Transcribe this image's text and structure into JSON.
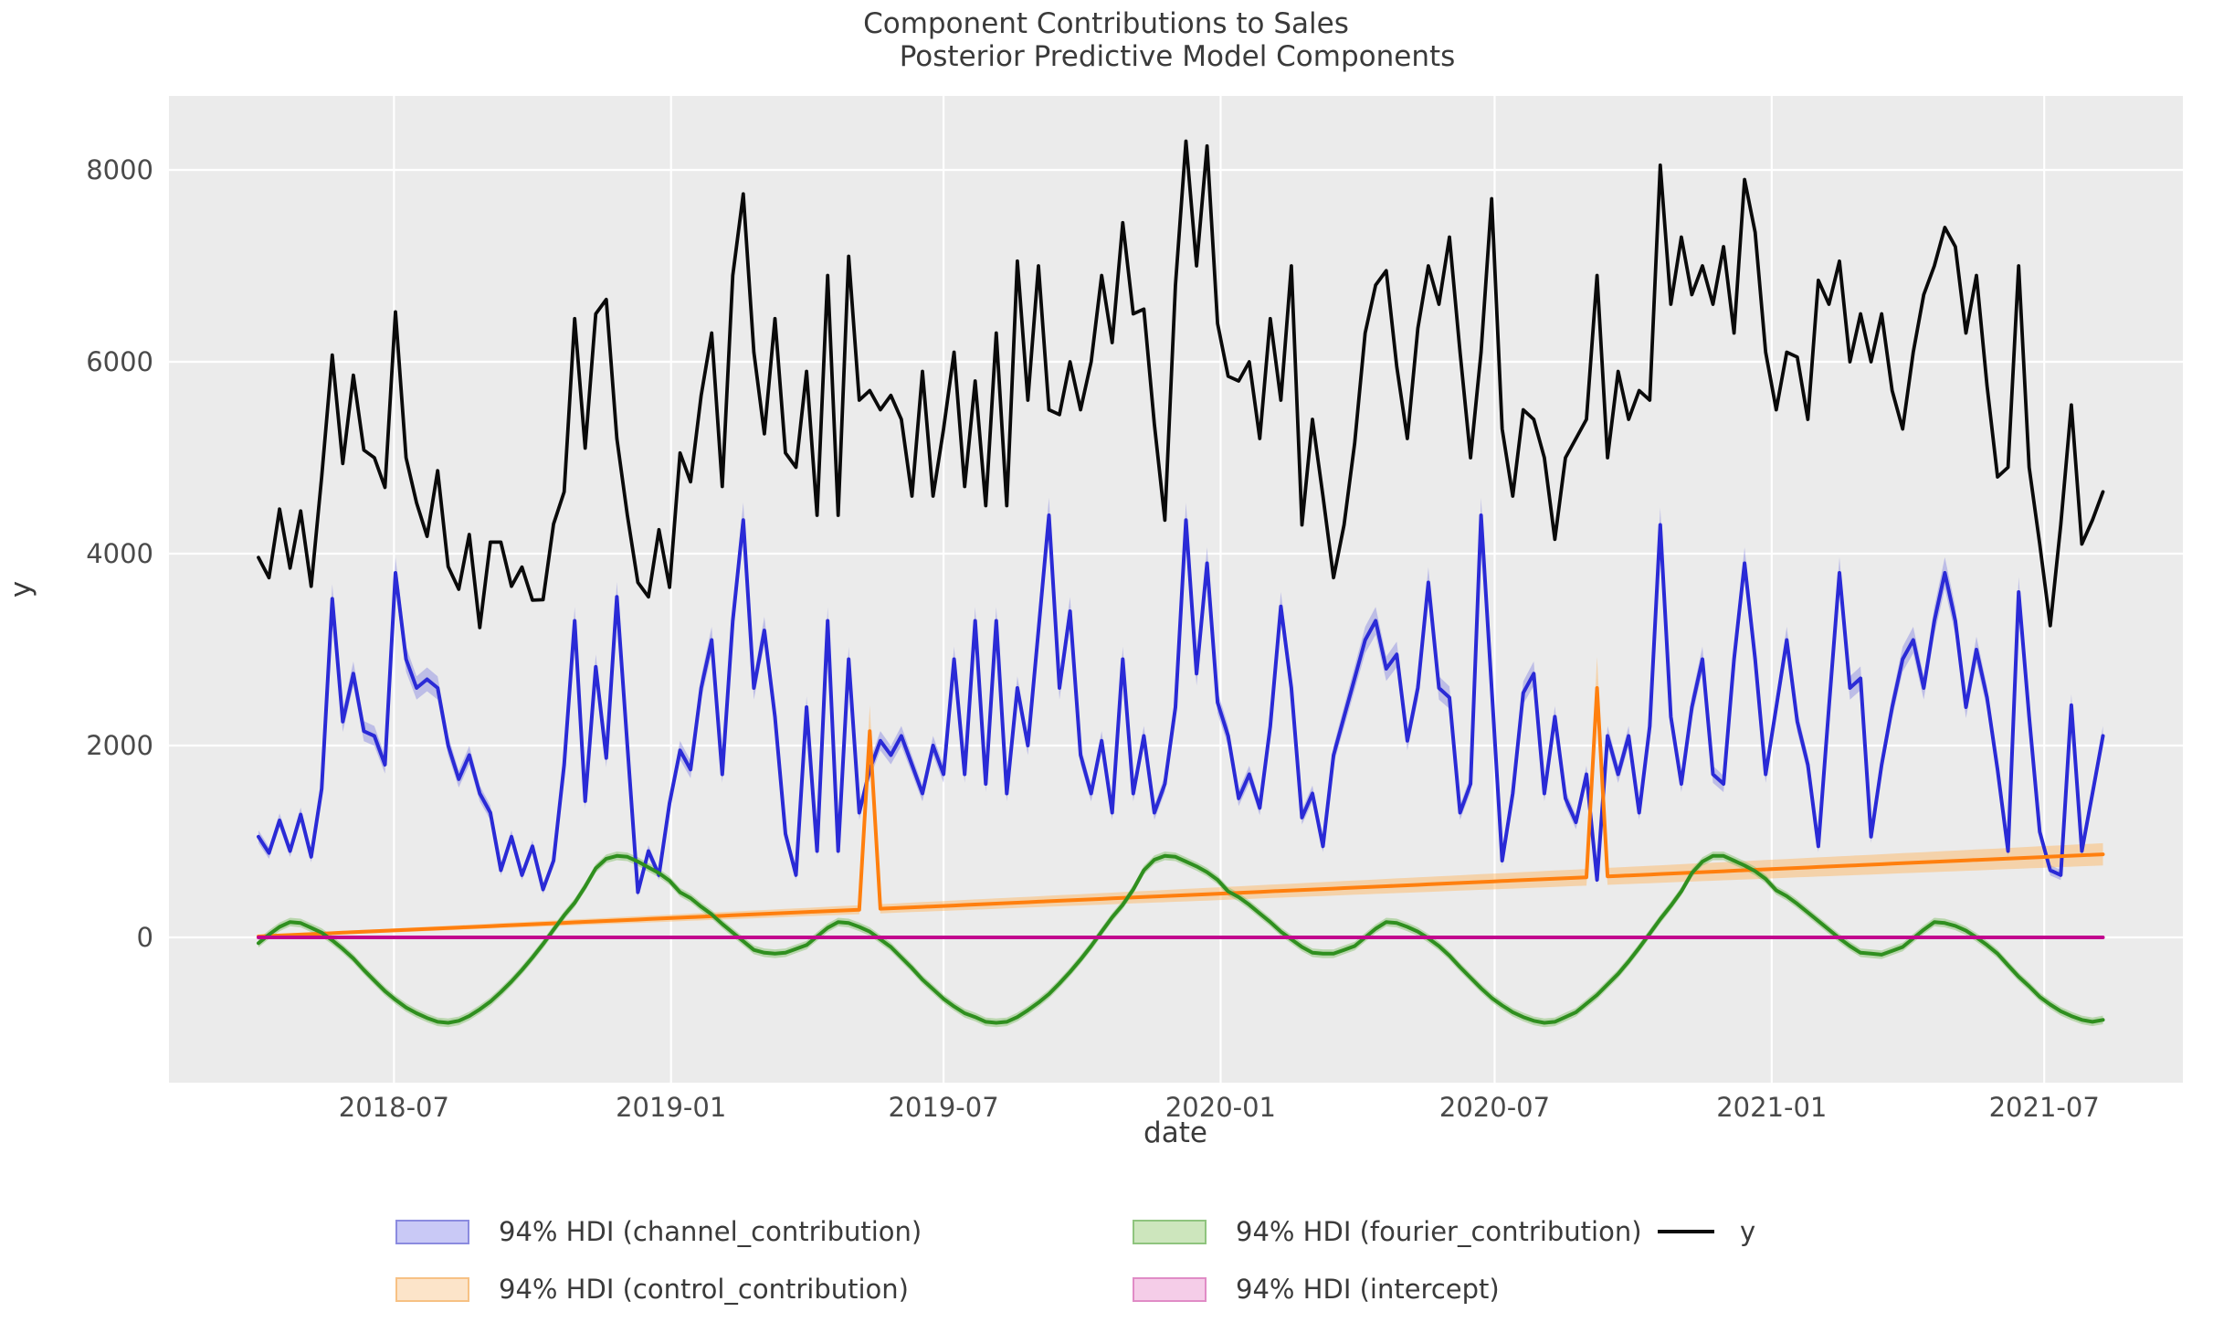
{
  "figure": {
    "suptitle": "Component Contributions to Sales",
    "title": "Posterior Predictive Model Components",
    "xlabel": "date",
    "ylabel": "y",
    "background_color": "#ffffff",
    "axes_background_color": "#ebebeb",
    "gridline_color": "#ffffff"
  },
  "legend": {
    "items": [
      {
        "label": "94% HDI (channel_contribution)",
        "swatch_fill": "#c9c9f6",
        "swatch_stroke": "#8b8bdf",
        "type": "patch",
        "row": 0,
        "col": 0
      },
      {
        "label": "94% HDI (control_contribution)",
        "swatch_fill": "#fce4c9",
        "swatch_stroke": "#f7c184",
        "type": "patch",
        "row": 1,
        "col": 0
      },
      {
        "label": "94% HDI (fourier_contribution)",
        "swatch_fill": "#cde6bd",
        "swatch_stroke": "#8fc47e",
        "type": "patch",
        "row": 0,
        "col": 1
      },
      {
        "label": "94% HDI (intercept)",
        "swatch_fill": "#f5cde8",
        "swatch_stroke": "#e08cc6",
        "type": "patch",
        "row": 1,
        "col": 1
      },
      {
        "label": "y",
        "swatch_stroke": "#0a0a0a",
        "type": "line",
        "row": 0,
        "col": 2
      }
    ]
  },
  "chart_data": {
    "type": "line",
    "title": "Component Contributions to Sales / Posterior Predictive Model Components",
    "xlabel": "date",
    "ylabel": "y",
    "grid": true,
    "legend_position": "below",
    "ylim": [
      -1500,
      8780
    ],
    "y_ticks": [
      0,
      2000,
      4000,
      6000,
      8000
    ],
    "x_ticks": [
      {
        "label": "2018-07",
        "date": "2018-07-01"
      },
      {
        "label": "2019-01",
        "date": "2019-01-01"
      },
      {
        "label": "2019-07",
        "date": "2019-07-01"
      },
      {
        "label": "2020-01",
        "date": "2020-01-01"
      },
      {
        "label": "2020-07",
        "date": "2020-07-01"
      },
      {
        "label": "2021-01",
        "date": "2021-01-01"
      },
      {
        "label": "2021-07",
        "date": "2021-07-01"
      }
    ],
    "dates": [
      "2018-04-02",
      "2018-04-09",
      "2018-04-16",
      "2018-04-23",
      "2018-04-30",
      "2018-05-07",
      "2018-05-14",
      "2018-05-21",
      "2018-05-28",
      "2018-06-04",
      "2018-06-11",
      "2018-06-18",
      "2018-06-25",
      "2018-07-02",
      "2018-07-09",
      "2018-07-16",
      "2018-07-23",
      "2018-07-30",
      "2018-08-06",
      "2018-08-13",
      "2018-08-20",
      "2018-08-27",
      "2018-09-03",
      "2018-09-10",
      "2018-09-17",
      "2018-09-24",
      "2018-10-01",
      "2018-10-08",
      "2018-10-15",
      "2018-10-22",
      "2018-10-29",
      "2018-11-05",
      "2018-11-12",
      "2018-11-19",
      "2018-11-26",
      "2018-12-03",
      "2018-12-10",
      "2018-12-17",
      "2018-12-24",
      "2018-12-31",
      "2019-01-07",
      "2019-01-14",
      "2019-01-21",
      "2019-01-28",
      "2019-02-04",
      "2019-02-11",
      "2019-02-18",
      "2019-02-25",
      "2019-03-04",
      "2019-03-11",
      "2019-03-18",
      "2019-03-25",
      "2019-04-01",
      "2019-04-08",
      "2019-04-15",
      "2019-04-22",
      "2019-04-29",
      "2019-05-06",
      "2019-05-13",
      "2019-05-20",
      "2019-05-27",
      "2019-06-03",
      "2019-06-10",
      "2019-06-17",
      "2019-06-24",
      "2019-07-01",
      "2019-07-08",
      "2019-07-15",
      "2019-07-22",
      "2019-07-29",
      "2019-08-05",
      "2019-08-12",
      "2019-08-19",
      "2019-08-26",
      "2019-09-02",
      "2019-09-09",
      "2019-09-16",
      "2019-09-23",
      "2019-09-30",
      "2019-10-07",
      "2019-10-14",
      "2019-10-21",
      "2019-10-28",
      "2019-11-04",
      "2019-11-11",
      "2019-11-18",
      "2019-11-25",
      "2019-12-02",
      "2019-12-09",
      "2019-12-16",
      "2019-12-23",
      "2019-12-30",
      "2020-01-06",
      "2020-01-13",
      "2020-01-20",
      "2020-01-27",
      "2020-02-03",
      "2020-02-10",
      "2020-02-17",
      "2020-02-24",
      "2020-03-02",
      "2020-03-09",
      "2020-03-16",
      "2020-03-23",
      "2020-03-30",
      "2020-04-06",
      "2020-04-13",
      "2020-04-20",
      "2020-04-27",
      "2020-05-04",
      "2020-05-11",
      "2020-05-18",
      "2020-05-25",
      "2020-06-01",
      "2020-06-08",
      "2020-06-15",
      "2020-06-22",
      "2020-06-29",
      "2020-07-06",
      "2020-07-13",
      "2020-07-20",
      "2020-07-27",
      "2020-08-03",
      "2020-08-10",
      "2020-08-17",
      "2020-08-24",
      "2020-08-31",
      "2020-09-07",
      "2020-09-14",
      "2020-09-21",
      "2020-09-28",
      "2020-10-05",
      "2020-10-12",
      "2020-10-19",
      "2020-10-26",
      "2020-11-02",
      "2020-11-09",
      "2020-11-16",
      "2020-11-23",
      "2020-11-30",
      "2020-12-07",
      "2020-12-14",
      "2020-12-21",
      "2020-12-28",
      "2021-01-04",
      "2021-01-11",
      "2021-01-18",
      "2021-01-25",
      "2021-02-01",
      "2021-02-08",
      "2021-02-15",
      "2021-02-22",
      "2021-03-01",
      "2021-03-08",
      "2021-03-15",
      "2021-03-22",
      "2021-03-29",
      "2021-04-05",
      "2021-04-12",
      "2021-04-19",
      "2021-04-26",
      "2021-05-03",
      "2021-05-10",
      "2021-05-17",
      "2021-05-24",
      "2021-05-31",
      "2021-06-07",
      "2021-06-14",
      "2021-06-21",
      "2021-06-28",
      "2021-07-05",
      "2021-07-12",
      "2021-07-19",
      "2021-07-26",
      "2021-08-02",
      "2021-08-09"
    ],
    "series": [
      {
        "name": "y",
        "color": "#0a0a0a",
        "kind": "line",
        "values": [
          3960,
          3750,
          4465,
          3850,
          4445,
          3660,
          4800,
          6070,
          4940,
          5860,
          5080,
          5000,
          4690,
          6520,
          5000,
          4530,
          4180,
          4865,
          3865,
          3630,
          4200,
          3230,
          4120,
          4120,
          3660,
          3860,
          3515,
          3520,
          4310,
          4645,
          6450,
          5100,
          6500,
          6650,
          5200,
          4400,
          3700,
          3550,
          4250,
          3650,
          5050,
          4750,
          5650,
          6300,
          4700,
          6900,
          7750,
          6100,
          5250,
          6450,
          5050,
          4900,
          5900,
          4400,
          6900,
          4400,
          7100,
          5600,
          5700,
          5500,
          5650,
          5400,
          4600,
          5900,
          4600,
          5300,
          6100,
          4700,
          5800,
          4500,
          6300,
          4500,
          7050,
          5600,
          7000,
          5500,
          5450,
          6000,
          5500,
          6000,
          6900,
          6200,
          7450,
          6500,
          6550,
          5350,
          4350,
          6800,
          8300,
          7000,
          8250,
          6400,
          5850,
          5800,
          6000,
          5200,
          6450,
          5600,
          7000,
          4300,
          5400,
          4600,
          3750,
          4300,
          5150,
          6300,
          6800,
          6950,
          5950,
          5200,
          6350,
          7000,
          6600,
          7300,
          6100,
          5000,
          6100,
          7700,
          5300,
          4600,
          5500,
          5400,
          5000,
          4150,
          5000,
          5200,
          5400,
          6900,
          5000,
          5900,
          5400,
          5700,
          5600,
          8050,
          6600,
          7300,
          6700,
          7000,
          6600,
          7200,
          6300,
          7900,
          7350,
          6100,
          5500,
          6100,
          6050,
          5400,
          6850,
          6600,
          7050,
          6000,
          6500,
          6000,
          6500,
          5700,
          5300,
          6100,
          6700,
          7000,
          7400,
          7200,
          6300,
          6900,
          5750,
          4800,
          4900,
          7000,
          4900,
          4100,
          3250,
          4300,
          5550,
          4100,
          4350,
          4645
        ]
      },
      {
        "name": "channel_contribution",
        "color": "#2a2ad6",
        "band_color": "#8484e0",
        "kind": "line_hdi",
        "hdi_label": "94% HDI (channel_contribution)",
        "hdi_halfwidth_frac": 0.035,
        "hdi_halfwidth_base": 30,
        "values": [
          1050,
          880,
          1220,
          900,
          1280,
          840,
          1550,
          3530,
          2250,
          2750,
          2150,
          2100,
          1800,
          3800,
          2900,
          2600,
          2690,
          2600,
          2000,
          1650,
          1900,
          1500,
          1300,
          700,
          1050,
          650,
          950,
          500,
          800,
          1800,
          3300,
          1420,
          2820,
          1870,
          3550,
          2000,
          470,
          900,
          650,
          1400,
          1950,
          1750,
          2600,
          3100,
          1700,
          3300,
          4350,
          2600,
          3200,
          2300,
          1080,
          650,
          2400,
          900,
          3300,
          900,
          2900,
          1300,
          1750,
          2050,
          1900,
          2100,
          1800,
          1500,
          2000,
          1700,
          2900,
          1700,
          3300,
          1600,
          3300,
          1500,
          2600,
          2000,
          3200,
          4400,
          2600,
          3400,
          1900,
          1500,
          2050,
          1300,
          2900,
          1500,
          2100,
          1300,
          1600,
          2400,
          4350,
          2750,
          3900,
          2450,
          2100,
          1450,
          1700,
          1350,
          2200,
          3450,
          2600,
          1250,
          1500,
          950,
          1900,
          2300,
          2700,
          3100,
          3300,
          2800,
          2950,
          2050,
          2600,
          3700,
          2600,
          2500,
          1300,
          1600,
          4400,
          2600,
          800,
          1500,
          2550,
          2750,
          1500,
          2300,
          1450,
          1200,
          1700,
          600,
          2100,
          1700,
          2100,
          1300,
          2200,
          4300,
          2300,
          1600,
          2400,
          2900,
          1700,
          1600,
          2900,
          3900,
          2900,
          1700,
          2400,
          3100,
          2250,
          1800,
          950,
          2400,
          3800,
          2600,
          2700,
          1050,
          1800,
          2400,
          2900,
          3100,
          2600,
          3300,
          3800,
          3300,
          2400,
          3000,
          2500,
          1750,
          900,
          3600,
          2300,
          1100,
          700,
          650,
          2420,
          900,
          1500,
          2100
        ]
      },
      {
        "name": "control_contribution",
        "color": "#ff7f0e",
        "band_color": "#ffb35c",
        "kind": "line_hdi",
        "hdi_label": "94% HDI (control_contribution)",
        "hdi_halfwidth_frac": 0.12,
        "hdi_halfwidth_base": 12,
        "trend_start": 10,
        "trend_end": 866,
        "spikes": [
          {
            "date": "2019-05-13",
            "week": 58,
            "value": 2150
          },
          {
            "date": "2020-09-07",
            "week": 127,
            "value": 2600
          }
        ]
      },
      {
        "name": "fourier_contribution",
        "color": "#2f8f1f",
        "band_color": "#7dbc62",
        "kind": "line_hdi",
        "hdi_label": "94% HDI (fourier_contribution)",
        "hdi_halfwidth_frac": 0,
        "hdi_halfwidth_base": 45,
        "values": [
          -60,
          30,
          110,
          160,
          150,
          100,
          50,
          -30,
          -120,
          -220,
          -340,
          -450,
          -560,
          -650,
          -730,
          -790,
          -840,
          -880,
          -890,
          -870,
          -820,
          -750,
          -670,
          -570,
          -460,
          -340,
          -210,
          -70,
          80,
          230,
          360,
          530,
          720,
          820,
          850,
          840,
          790,
          730,
          670,
          590,
          470,
          410,
          320,
          240,
          140,
          50,
          -40,
          -130,
          -160,
          -170,
          -160,
          -120,
          -80,
          10,
          100,
          160,
          150,
          110,
          60,
          -20,
          -100,
          -210,
          -320,
          -440,
          -540,
          -640,
          -720,
          -790,
          -830,
          -880,
          -890,
          -880,
          -830,
          -760,
          -680,
          -590,
          -480,
          -360,
          -230,
          -90,
          60,
          210,
          340,
          500,
          700,
          810,
          850,
          840,
          790,
          740,
          680,
          600,
          480,
          420,
          340,
          250,
          160,
          60,
          -20,
          -100,
          -160,
          -170,
          -170,
          -130,
          -90,
          0,
          90,
          160,
          150,
          110,
          60,
          -10,
          -90,
          -190,
          -310,
          -420,
          -530,
          -630,
          -710,
          -780,
          -830,
          -870,
          -890,
          -880,
          -830,
          -780,
          -690,
          -600,
          -490,
          -380,
          -250,
          -110,
          40,
          190,
          330,
          480,
          670,
          790,
          850,
          850,
          800,
          750,
          690,
          610,
          490,
          430,
          350,
          260,
          170,
          80,
          -10,
          -90,
          -160,
          -170,
          -180,
          -140,
          -100,
          -10,
          80,
          160,
          150,
          120,
          70,
          0,
          -80,
          -170,
          -290,
          -410,
          -510,
          -620,
          -700,
          -770,
          -820,
          -860,
          -880,
          -860
        ]
      },
      {
        "name": "intercept",
        "color": "#c2058e",
        "band_color": "#e884c8",
        "kind": "line_hdi",
        "hdi_label": "94% HDI (intercept)",
        "hdi_halfwidth_frac": 0,
        "hdi_halfwidth_base": 15,
        "constant_value": 0
      }
    ]
  }
}
